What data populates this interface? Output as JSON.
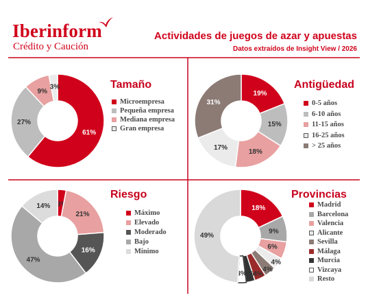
{
  "brand": {
    "name": "Iberinform",
    "tagline": "Crédito y Caución"
  },
  "header": {
    "title": "Actividades de juegos de azar y apuestas",
    "subtitle": "Datos extraídos de Insight View / 2026"
  },
  "colors": {
    "accent": "#d0021b",
    "divider": "#c8001c"
  },
  "chart_data": [
    {
      "type": "pie",
      "title": "Tamaño",
      "categories": [
        "Microempresa",
        "Pequeña empresa",
        "Mediana empresa",
        "Gran empresa"
      ],
      "values": [
        61,
        27,
        9,
        3
      ],
      "labels": [
        "61%",
        "27%",
        "9%",
        "3%"
      ],
      "colors": [
        "#d0021b",
        "#bdbdbd",
        "#e8a0a0",
        "#ebebeb"
      ]
    },
    {
      "type": "pie",
      "title": "Antigüedad",
      "categories": [
        "0-5 años",
        "6-10 años",
        "11-15 años",
        "16-25 años",
        "> 25 años"
      ],
      "values": [
        19,
        15,
        18,
        17,
        31
      ],
      "labels": [
        "19%",
        "15%",
        "18%",
        "17%",
        "31%"
      ],
      "colors": [
        "#d0021b",
        "#bdbdbd",
        "#e8a0a0",
        "#ebebeb",
        "#8c7b75"
      ]
    },
    {
      "type": "pie",
      "title": "Riesgo",
      "categories": [
        "Máximo",
        "Elevado",
        "Moderado",
        "Bajo",
        "Mínimo"
      ],
      "values": [
        3,
        21,
        16,
        47,
        14
      ],
      "labels": [
        "3%",
        "21%",
        "16%",
        "47%",
        "14%"
      ],
      "colors": [
        "#d0021b",
        "#e8a0a0",
        "#555555",
        "#a8a8a8",
        "#dcdcdc"
      ]
    },
    {
      "type": "pie",
      "title": "Provincias",
      "categories": [
        "Madrid",
        "Barcelona",
        "Valencia",
        "Alicante",
        "Sevilla",
        "Málaga",
        "Murcia",
        "Vizcaya",
        "Resto"
      ],
      "values": [
        18,
        9,
        6,
        4,
        4,
        4,
        3,
        3,
        49
      ],
      "labels": [
        "18%",
        "9%",
        "6%",
        "4%",
        "4%",
        "4%",
        "3%",
        "3%",
        "49%"
      ],
      "colors": [
        "#d0021b",
        "#a8a8a8",
        "#e8a0a0",
        "#ebebeb",
        "#8c7b75",
        "#9b2a2a",
        "#333333",
        "#ffffff",
        "#d9d9d9"
      ]
    }
  ]
}
